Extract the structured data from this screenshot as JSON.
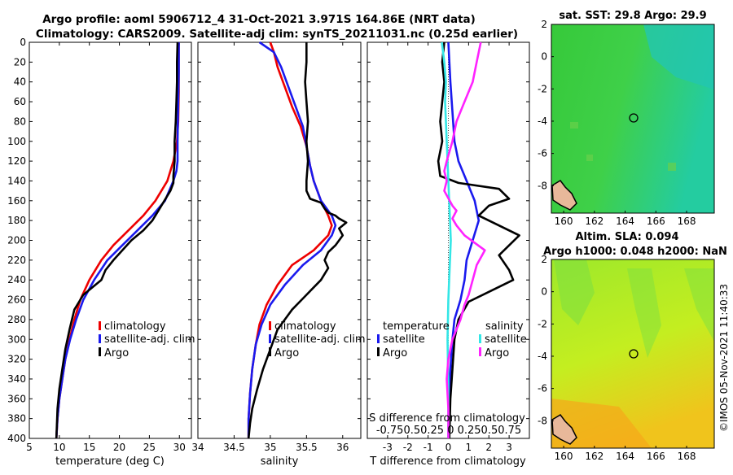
{
  "header": {
    "title1": "Argo profile: aoml 5906712_4 31-Oct-2021 3.971S 164.86E (NRT data)",
    "title2": "Climatology: CARS2009. Satellite-adj clim: synTS_20211031.nc (0.25d earlier)"
  },
  "chart_data": [
    {
      "type": "line",
      "id": "temperature",
      "xlabel": "temperature (deg C)",
      "ylabel": "depth",
      "xlim": [
        5,
        32
      ],
      "xticks": [
        5,
        10,
        15,
        20,
        25,
        30
      ],
      "ylim": [
        0,
        400
      ],
      "yticks": [
        0,
        20,
        40,
        60,
        80,
        100,
        120,
        140,
        160,
        180,
        200,
        220,
        240,
        260,
        280,
        300,
        320,
        340,
        360,
        380,
        400
      ],
      "legend": [
        {
          "label": "climatology",
          "color": "#ee0000"
        },
        {
          "label": "satellite-adj. clim",
          "color": "#1a1aee"
        },
        {
          "label": "Argo",
          "color": "#000000"
        }
      ],
      "series": [
        {
          "name": "climatology",
          "color": "#ee0000",
          "x": [
            29.9,
            29.9,
            29.9,
            29.8,
            29.6,
            29.0,
            28.0,
            26.0,
            24.0,
            21.5,
            19.0,
            17.0,
            15.0,
            13.5,
            12.5,
            11.7,
            11.0,
            10.5,
            10.0,
            9.7,
            9.5
          ],
          "y": [
            0,
            20,
            50,
            80,
            100,
            120,
            140,
            160,
            175,
            190,
            205,
            220,
            240,
            260,
            280,
            300,
            320,
            340,
            360,
            380,
            400
          ]
        },
        {
          "name": "satellite-adj. clim",
          "color": "#1a1aee",
          "x": [
            29.9,
            29.9,
            29.8,
            29.7,
            29.7,
            29.5,
            29.0,
            27.6,
            25.5,
            23.0,
            20.5,
            18.0,
            15.8,
            14.0,
            12.8,
            11.8,
            11.0,
            10.5,
            10.0,
            9.7,
            9.5
          ],
          "y": [
            0,
            30,
            60,
            100,
            120,
            130,
            140,
            160,
            175,
            190,
            205,
            220,
            240,
            260,
            280,
            300,
            320,
            340,
            360,
            380,
            400
          ]
        },
        {
          "name": "Argo",
          "color": "#000000",
          "x": [
            29.7,
            29.6,
            29.6,
            29.5,
            29.4,
            29.2,
            29.2,
            29.0,
            29.0,
            28.5,
            27.5,
            26.5,
            25.5,
            24.0,
            22.0,
            20.5,
            19.0,
            17.7,
            17.0,
            16.0,
            14.0,
            12.5,
            11.7,
            11.0,
            10.5,
            10.0,
            9.7,
            9.5
          ],
          "y": [
            0,
            20,
            40,
            60,
            80,
            100,
            120,
            135,
            142,
            150,
            160,
            170,
            180,
            190,
            200,
            210,
            220,
            230,
            240,
            245,
            255,
            270,
            290,
            310,
            330,
            350,
            370,
            400
          ]
        }
      ]
    },
    {
      "type": "line",
      "id": "salinity",
      "xlabel": "salinity",
      "xlim": [
        34,
        36.25
      ],
      "xticks": [
        34,
        34.5,
        35,
        35.5,
        36
      ],
      "xticklabels": [
        "34",
        "34.5",
        "35",
        "35.5",
        "36"
      ],
      "ylim": [
        0,
        400
      ],
      "legend": [
        {
          "label": "climatology",
          "color": "#ee0000"
        },
        {
          "label": "satellite-adj. clim",
          "color": "#1a1aee"
        },
        {
          "label": "Argo",
          "color": "#000000"
        }
      ],
      "series": [
        {
          "name": "climatology",
          "color": "#ee0000",
          "x": [
            35.0,
            35.05,
            35.1,
            35.2,
            35.3,
            35.42,
            35.5,
            35.55,
            35.6,
            35.7,
            35.8,
            35.85,
            35.8,
            35.6,
            35.3,
            35.1,
            34.95,
            34.85,
            34.8,
            34.75,
            34.72,
            34.7,
            34.7
          ],
          "y": [
            0,
            10,
            25,
            45,
            65,
            85,
            105,
            125,
            140,
            160,
            175,
            185,
            195,
            210,
            225,
            245,
            265,
            285,
            305,
            330,
            355,
            380,
            400
          ]
        },
        {
          "name": "satellite-adj. clim",
          "color": "#1a1aee",
          "x": [
            34.85,
            35.05,
            35.15,
            35.25,
            35.35,
            35.45,
            35.5,
            35.55,
            35.6,
            35.7,
            35.85,
            35.9,
            35.85,
            35.7,
            35.45,
            35.2,
            35.0,
            34.88,
            34.8,
            34.75,
            34.72,
            34.7,
            34.7
          ],
          "y": [
            0,
            10,
            25,
            45,
            65,
            85,
            105,
            125,
            140,
            160,
            175,
            185,
            195,
            210,
            225,
            245,
            265,
            285,
            305,
            330,
            355,
            380,
            400
          ]
        },
        {
          "name": "Argo",
          "color": "#000000",
          "x": [
            35.5,
            35.5,
            35.48,
            35.5,
            35.52,
            35.5,
            35.52,
            35.5,
            35.5,
            35.55,
            35.7,
            35.75,
            35.8,
            35.9,
            35.95,
            36.05,
            35.95,
            36.0,
            35.9,
            35.8,
            35.75,
            35.8,
            35.7,
            35.5,
            35.3,
            35.1,
            35.0,
            34.9,
            34.82,
            34.75,
            34.72,
            34.7
          ],
          "y": [
            0,
            20,
            40,
            60,
            80,
            100,
            120,
            140,
            150,
            158,
            162,
            168,
            172,
            175,
            178,
            182,
            188,
            195,
            205,
            212,
            220,
            228,
            240,
            255,
            270,
            290,
            310,
            330,
            350,
            370,
            385,
            400
          ]
        }
      ]
    },
    {
      "type": "line",
      "id": "difference",
      "xlabel": "T difference from climatology",
      "xlim": [
        -4,
        4
      ],
      "xticks": [
        -3,
        -2,
        -1,
        0,
        1,
        2,
        3
      ],
      "xticklabels": [
        "-3",
        "-2",
        "-1",
        "0",
        "1",
        "2",
        "3"
      ],
      "xlabel2": "S difference from climatology",
      "xticklabels2": "-0.750.50.25  0  0.250.50.75",
      "ylim": [
        0,
        400
      ],
      "legend_temperature_title": "temperature",
      "legend_salinity_title": "salinity",
      "legend": [
        {
          "label": "satellite",
          "color": "#1a1aee",
          "group": "temperature"
        },
        {
          "label": "Argo",
          "color": "#000000",
          "group": "temperature"
        },
        {
          "label": "satellite",
          "color": "#33e6e6",
          "group": "salinity"
        },
        {
          "label": "Argo",
          "color": "#ff22ff",
          "group": "salinity"
        }
      ],
      "series": [
        {
          "name": "T satellite",
          "color": "#1a1aee",
          "x": [
            0.0,
            0.1,
            0.2,
            0.3,
            0.5,
            0.9,
            1.3,
            1.5,
            1.2,
            0.9,
            0.8,
            0.6,
            0.3,
            0.2,
            0.1,
            0.05,
            0.0
          ],
          "y": [
            0,
            40,
            70,
            100,
            120,
            140,
            160,
            180,
            200,
            220,
            240,
            260,
            280,
            300,
            330,
            360,
            400
          ]
        },
        {
          "name": "T Argo",
          "color": "#000000",
          "x": [
            -0.2,
            -0.3,
            -0.2,
            -0.3,
            -0.4,
            -0.3,
            -0.5,
            -0.4,
            0.5,
            2.5,
            3.0,
            2.0,
            1.5,
            3.5,
            2.5,
            3.0,
            3.2,
            2.0,
            1.0,
            0.5,
            0.3,
            0.2,
            0.1,
            0.05
          ],
          "y": [
            0,
            20,
            40,
            60,
            80,
            100,
            120,
            135,
            142,
            148,
            158,
            165,
            175,
            195,
            215,
            230,
            240,
            252,
            262,
            280,
            300,
            330,
            360,
            400
          ]
        },
        {
          "name": "S satellite",
          "color": "#33e6e6",
          "x": [
            -0.08,
            -0.05,
            -0.03,
            -0.04,
            -0.03,
            -0.02,
            -0.01,
            0.0,
            0.01,
            0.02,
            0.03,
            0.02,
            0.01,
            0.0,
            -0.01,
            0.0,
            0.0
          ],
          "y": [
            0,
            20,
            40,
            60,
            80,
            100,
            120,
            140,
            160,
            180,
            200,
            220,
            240,
            260,
            300,
            350,
            400
          ]
        },
        {
          "name": "S Argo",
          "color": "#ff22ff",
          "x": [
            0.4,
            0.35,
            0.3,
            0.2,
            0.1,
            0.05,
            -0.02,
            -0.05,
            -0.02,
            -0.05,
            0.05,
            0.1,
            0.05,
            0.1,
            0.2,
            0.45,
            0.35,
            0.3,
            0.25,
            0.2,
            0.15,
            0.05,
            0.0,
            -0.02,
            0.0,
            0.0
          ],
          "y": [
            0,
            20,
            40,
            60,
            80,
            100,
            120,
            130,
            140,
            150,
            165,
            170,
            178,
            185,
            195,
            210,
            225,
            240,
            255,
            265,
            280,
            300,
            320,
            340,
            370,
            400
          ]
        }
      ]
    }
  ],
  "maps": {
    "sst": {
      "title": "sat. SST: 29.8 Argo: 29.9",
      "xticks": [
        "160",
        "162",
        "164",
        "166",
        "168"
      ],
      "yticks": [
        "2",
        "0",
        "-2",
        "-4",
        "-6",
        "-8"
      ]
    },
    "sla": {
      "title1": "Altim. SLA: 0.094",
      "title2": "Argo h1000: 0.048 h2000: NaN",
      "xticks": [
        "160",
        "162",
        "164",
        "166",
        "168"
      ],
      "yticks": [
        "2",
        "0",
        "-2",
        "-4",
        "-6",
        "-8"
      ]
    }
  },
  "footer": {
    "credit": "©IMOS 05-Nov-2021 11:40:33"
  }
}
